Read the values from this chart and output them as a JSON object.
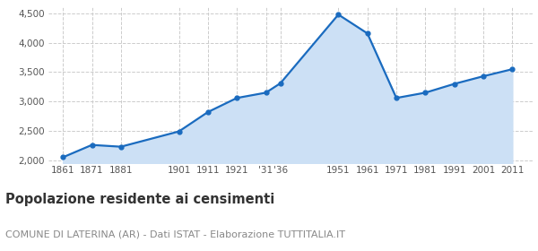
{
  "years": [
    1861,
    1871,
    1881,
    1901,
    1911,
    1921,
    1931,
    1936,
    1951,
    1961,
    1971,
    1981,
    1991,
    2001,
    2011
  ],
  "population": [
    2050,
    2260,
    2230,
    2490,
    2820,
    3060,
    3150,
    3310,
    4480,
    4160,
    3060,
    3150,
    3300,
    3430,
    3550
  ],
  "x_pos_map": {
    "1861": 0,
    "1871": 1,
    "1881": 2,
    "1901": 4,
    "1911": 5,
    "1921": 6,
    "1931": 7,
    "1936": 7.5,
    "1951": 9.5,
    "1961": 10.5,
    "1971": 11.5,
    "1981": 12.5,
    "1991": 13.5,
    "2001": 14.5,
    "2011": 15.5
  },
  "tick_positions": [
    0,
    1,
    2,
    4,
    5,
    6,
    7,
    7.5,
    9.5,
    10.5,
    11.5,
    12.5,
    13.5,
    14.5,
    15.5
  ],
  "tick_labels": [
    "1861",
    "1871",
    "1881",
    "1901",
    "1911",
    "1921",
    "'31",
    "'36",
    "1951",
    "1961",
    "1971",
    "1981",
    "1991",
    "2001",
    "2011"
  ],
  "line_color": "#1a6bbf",
  "fill_color": "#cce0f5",
  "marker_color": "#1a6bbf",
  "background_color": "#ffffff",
  "grid_color": "#cccccc",
  "ylim": [
    1950,
    4600
  ],
  "yticks": [
    2000,
    2500,
    3000,
    3500,
    4000,
    4500
  ],
  "xlim": [
    -0.5,
    16.2
  ],
  "title": "Popolazione residente ai censimenti",
  "subtitle": "COMUNE DI LATERINA (AR) - Dati ISTAT - Elaborazione TUTTITALIA.IT",
  "title_fontsize": 10.5,
  "subtitle_fontsize": 8,
  "title_color": "#333333",
  "subtitle_color": "#888888"
}
